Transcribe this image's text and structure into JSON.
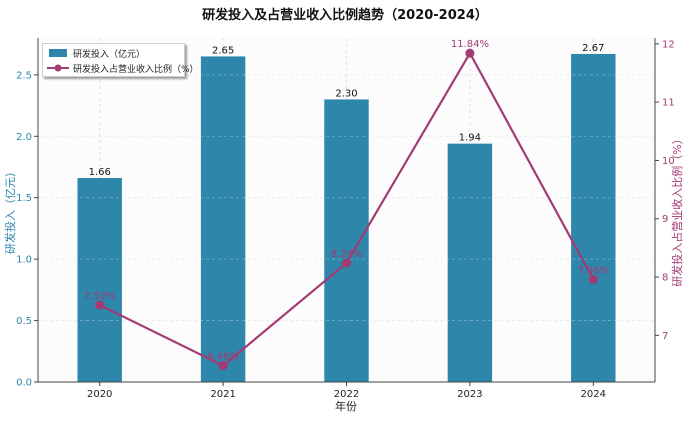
{
  "chart_data": {
    "type": "bar+line",
    "title": "研发投入及占营业收入比例趋势（2020-2024）",
    "xlabel": "年份",
    "ylabel_left": "研发投入（亿元）",
    "ylabel_right": "研发投入占营业收入比例（%）",
    "categories": [
      "2020",
      "2021",
      "2022",
      "2023",
      "2024"
    ],
    "series": [
      {
        "name": "研发投入（亿元）",
        "type": "bar",
        "axis": "left",
        "values": [
          1.66,
          2.65,
          2.3,
          1.94,
          2.67
        ],
        "labels": [
          "1.66",
          "2.65",
          "2.30",
          "1.94",
          "2.67"
        ],
        "color": "#2e86ab"
      },
      {
        "name": "研发投入占营业收入比例（%）",
        "type": "line",
        "axis": "right",
        "values": [
          7.52,
          6.48,
          8.24,
          11.84,
          7.96
        ],
        "labels": [
          "7.52%",
          "6.48%",
          "8.24%",
          "11.84%",
          "7.96%"
        ],
        "color": "#a23b72"
      }
    ],
    "ylim_left": [
      0,
      2.8
    ],
    "yticks_left": [
      0.0,
      0.5,
      1.0,
      1.5,
      2.0,
      2.5
    ],
    "ytick_labels_left": [
      "0.0",
      "0.5",
      "1.0",
      "1.5",
      "2.0",
      "2.5"
    ],
    "ylim_right": [
      6.2,
      12.1
    ],
    "yticks_right": [
      7,
      8,
      9,
      10,
      11,
      12
    ],
    "ytick_labels_right": [
      "7",
      "8",
      "9",
      "10",
      "11",
      "12"
    ],
    "grid": true,
    "legend_position": "top-left"
  },
  "legend": {
    "bar_label": "研发投入（亿元）",
    "line_label": "研发投入占营业收入比例（%）"
  }
}
